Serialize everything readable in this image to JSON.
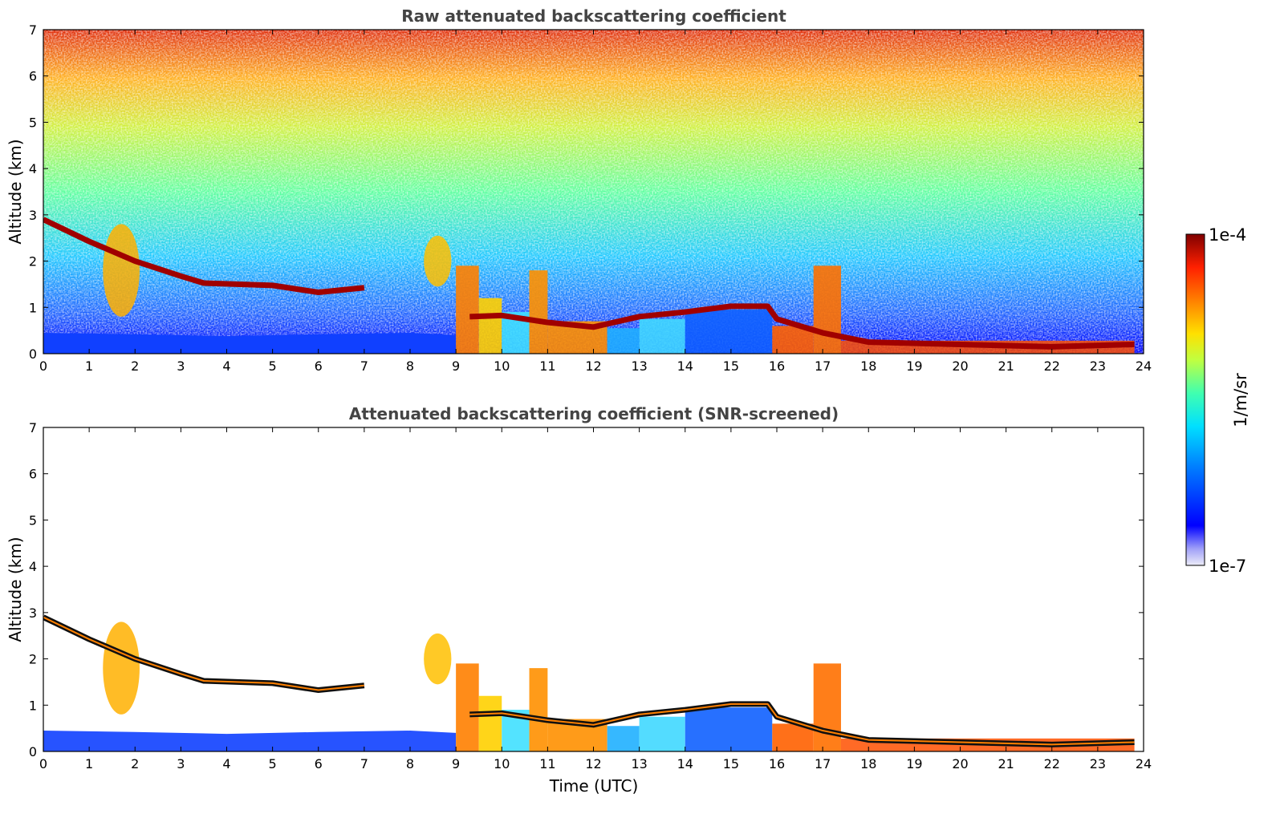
{
  "chart_data": [
    {
      "type": "heatmap",
      "title": "Raw attenuated backscattering coefficient",
      "xlabel": "",
      "ylabel": "Altitude (km)",
      "xlim": [
        0,
        24
      ],
      "ylim": [
        0,
        7
      ],
      "xticks": [
        "0",
        "1",
        "2",
        "3",
        "4",
        "5",
        "6",
        "7",
        "8",
        "9",
        "10",
        "11",
        "12",
        "13",
        "14",
        "15",
        "16",
        "17",
        "18",
        "19",
        "20",
        "21",
        "22",
        "23",
        "24"
      ],
      "yticks": [
        "0",
        "1",
        "2",
        "3",
        "4",
        "5",
        "6",
        "7"
      ],
      "screened": false,
      "layers": [
        {
          "name": "aerosol-boundary-layer",
          "segments": [
            [
              0,
              0,
              0.45
            ],
            [
              2,
              0,
              0.42
            ],
            [
              4,
              0,
              0.38
            ],
            [
              6,
              0,
              0.42
            ],
            [
              8,
              0,
              0.45
            ],
            [
              9,
              0,
              0.4
            ]
          ]
        },
        {
          "name": "elevated-layer",
          "segments": [
            [
              0,
              2.8,
              3.0
            ],
            [
              1,
              2.35,
              2.5
            ],
            [
              2,
              1.9,
              2.1
            ],
            [
              3,
              1.6,
              1.75
            ],
            [
              3.5,
              1.45,
              1.6
            ],
            [
              5,
              1.4,
              1.55
            ],
            [
              6,
              1.2,
              1.45
            ],
            [
              7,
              1.35,
              1.5
            ]
          ]
        },
        {
          "name": "daytime-boundary-layer-top",
          "segments": [
            [
              9.3,
              0.7,
              0.9
            ],
            [
              10,
              0.75,
              0.9
            ],
            [
              11,
              0.6,
              0.75
            ],
            [
              12,
              0.5,
              0.65
            ],
            [
              13,
              0.75,
              0.85
            ],
            [
              14,
              0.85,
              0.95
            ],
            [
              15,
              1.0,
              1.05
            ],
            [
              15.8,
              1.0,
              1.05
            ],
            [
              16,
              0.7,
              0.8
            ],
            [
              17,
              0.4,
              0.5
            ],
            [
              18,
              0.2,
              0.3
            ],
            [
              20,
              0.15,
              0.25
            ],
            [
              22,
              0.1,
              0.2
            ],
            [
              23.8,
              0.15,
              0.25
            ]
          ]
        }
      ]
    },
    {
      "type": "heatmap",
      "title": "Attenuated backscattering coefficient (SNR-screened)",
      "xlabel": "Time (UTC)",
      "ylabel": "Altitude (km)",
      "xlim": [
        0,
        24
      ],
      "ylim": [
        0,
        7
      ],
      "xticks": [
        "0",
        "1",
        "2",
        "3",
        "4",
        "5",
        "6",
        "7",
        "8",
        "9",
        "10",
        "11",
        "12",
        "13",
        "14",
        "15",
        "16",
        "17",
        "18",
        "19",
        "20",
        "21",
        "22",
        "23",
        "24"
      ],
      "yticks": [
        "0",
        "1",
        "2",
        "3",
        "4",
        "5",
        "6",
        "7"
      ],
      "screened": true
    }
  ],
  "colorbar": {
    "label": "1/m/sr",
    "max_label": "1e-4",
    "min_label": "1e-7",
    "scale": "log",
    "range": [
      1e-07,
      0.0001
    ],
    "colormap": "jet",
    "colors": [
      "#e8e8f8",
      "#6060ff",
      "#0000ff",
      "#0070ff",
      "#00d0ff",
      "#40ffb0",
      "#c0ff40",
      "#ffe000",
      "#ff8000",
      "#ff2000",
      "#a00000",
      "#800000"
    ]
  }
}
